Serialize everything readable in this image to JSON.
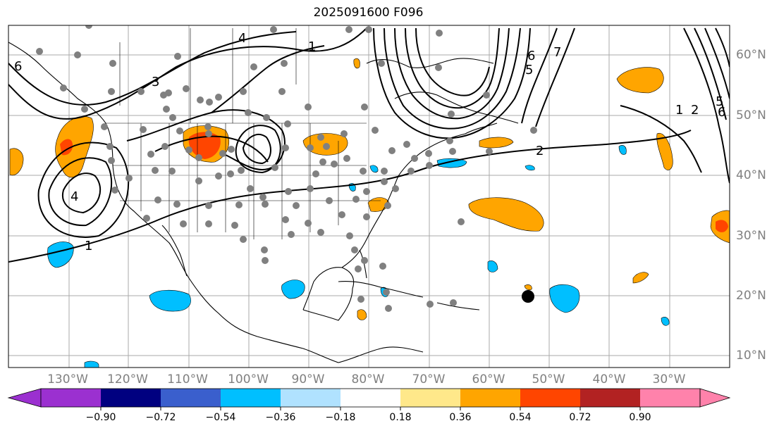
{
  "title": "2025091600 F096",
  "lat_labels": [
    "60°N",
    "50°N",
    "40°N",
    "30°N",
    "20°N",
    "10°N"
  ],
  "lon_labels": [
    "130°W",
    "120°W",
    "110°W",
    "100°W",
    "90°W",
    "80°W",
    "70°W",
    "60°W",
    "50°W",
    "40°W",
    "30°W"
  ],
  "colorbar": {
    "colors": [
      "#9b30d0",
      "#000080",
      "#3a5fcd",
      "#00bfff",
      "#b0e2ff",
      "#ffffff",
      "#ffe88a",
      "#ffa500",
      "#ff4500",
      "#b22222",
      "#ff82ab"
    ],
    "tick_labels": [
      "−0.90",
      "−0.72",
      "−0.54",
      "−0.36",
      "−0.18",
      "0.18",
      "0.36",
      "0.54",
      "0.72",
      "0.90"
    ]
  },
  "contour_labels": [
    "1",
    "2",
    "3",
    "4",
    "5",
    "6",
    "7"
  ],
  "legend_colors": {
    "station_dot": "#808080",
    "storm_dot": "#000000",
    "grid": "#aaaaaa",
    "positive": "#ffa500",
    "positive_strong": "#ff4500",
    "negative": "#00bfff"
  }
}
